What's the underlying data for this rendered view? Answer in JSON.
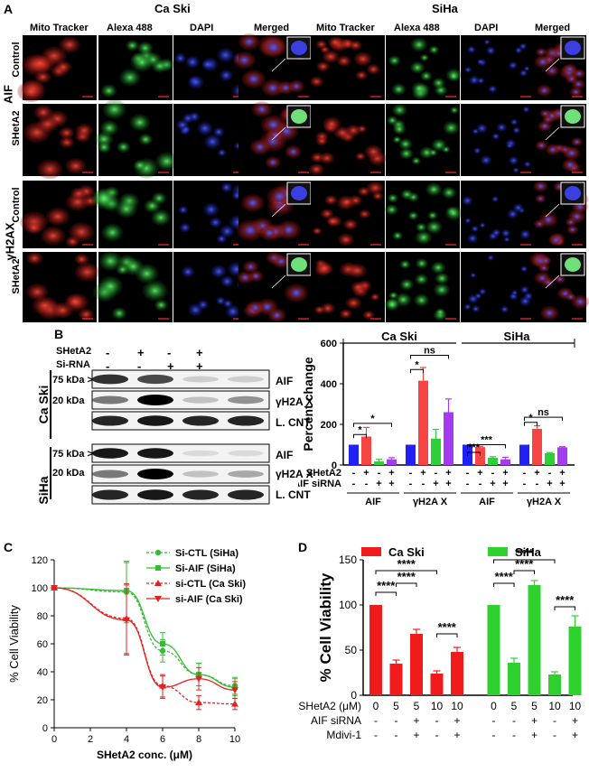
{
  "panelA": {
    "letter": "A",
    "groups": [
      "Ca Ski",
      "SiHa"
    ],
    "channels": [
      "Mito Tracker",
      "Alexa 488",
      "DAPI",
      "Merged"
    ],
    "markers": [
      "AIF",
      "γH2AX"
    ],
    "conditions": [
      "Control",
      "SHetA2"
    ],
    "colors": {
      "mito": "#d42a2a",
      "alexa": "#2fbf3a",
      "dapi": "#2a35d8"
    }
  },
  "panelB": {
    "letter": "B",
    "treat_labels": [
      "SHetA2",
      "Si-RNA"
    ],
    "treat_rows": [
      [
        "-",
        "+",
        "-",
        "+"
      ],
      [
        "-",
        "-",
        "+",
        "+"
      ]
    ],
    "cell_lines": [
      "Ca Ski",
      "SiHa"
    ],
    "kda": [
      "75 kDa >",
      "20 kDa",
      "75 kDa >",
      "20 kDa"
    ],
    "band_labels": [
      "AIF",
      "γH2A X",
      "L. CNT",
      "AIF",
      "γH2A X",
      "L. CNT"
    ]
  },
  "panelBchart": {
    "chart_data": {
      "type": "bar",
      "ylabel": "Percent change",
      "ylim": [
        0,
        600
      ],
      "yticks": [
        "0",
        "200",
        "400",
        "600"
      ],
      "groups_top": [
        "Ca Ski",
        "SiHa"
      ],
      "groups_bottom": [
        "AIF",
        "γH2A X",
        "AIF",
        "γH2A X"
      ],
      "row_labels": [
        "SHetA2",
        "AIF siRNA"
      ],
      "row_signs": [
        [
          "-",
          "+",
          "-",
          "+"
        ],
        [
          "-",
          "-",
          "+",
          "+"
        ]
      ],
      "colors": [
        "#2121f5",
        "#f54545",
        "#2fcf3a",
        "#a33cf0"
      ],
      "values": [
        [
          100,
          140,
          18,
          28
        ],
        [
          100,
          415,
          130,
          260
        ],
        [
          100,
          88,
          36,
          28
        ],
        [
          100,
          178,
          58,
          87
        ]
      ],
      "errors": [
        [
          0,
          45,
          10,
          8
        ],
        [
          0,
          65,
          45,
          65
        ],
        [
          0,
          4,
          5,
          10
        ],
        [
          0,
          15,
          3,
          3
        ]
      ],
      "annotations": [
        "*",
        "*",
        "*",
        "ns",
        "***",
        "***",
        "*",
        "ns"
      ]
    }
  },
  "panelC": {
    "letter": "C",
    "chart_data": {
      "type": "line",
      "xlabel": "SHetA2 conc. (μM)",
      "ylabel": "% Cell Viability",
      "xlim": [
        0,
        10
      ],
      "ylim": [
        0,
        120
      ],
      "xticks": [
        "0",
        "2",
        "4",
        "6",
        "8",
        "10"
      ],
      "yticks": [
        "0",
        "20",
        "40",
        "60",
        "80",
        "100",
        "120"
      ],
      "x": [
        0,
        4,
        6,
        8,
        10
      ],
      "series": [
        {
          "name": "Si-CTL (SiHa)",
          "color": "#2fbf2f",
          "dash": true,
          "marker": "circle",
          "values": [
            100,
            97,
            55,
            38,
            30
          ],
          "err": [
            0,
            22,
            8,
            8,
            6
          ]
        },
        {
          "name": "Si-AIF (SiHa)",
          "color": "#2fbf2f",
          "dash": false,
          "marker": "square",
          "values": [
            100,
            98,
            60,
            38,
            29
          ],
          "err": [
            0,
            20,
            8,
            8,
            6
          ]
        },
        {
          "name": "si-CTL (Ca Ski)",
          "color": "#e52222",
          "dash": true,
          "marker": "triangle-up",
          "values": [
            100,
            78,
            30,
            18,
            17
          ],
          "err": [
            0,
            25,
            8,
            5,
            4
          ]
        },
        {
          "name": "si-AIF (Ca Ski)",
          "color": "#e52222",
          "dash": false,
          "marker": "triangle-down",
          "values": [
            100,
            77,
            29,
            35,
            27
          ],
          "err": [
            0,
            25,
            8,
            8,
            6
          ]
        }
      ]
    }
  },
  "panelD": {
    "letter": "D",
    "chart_data": {
      "type": "bar",
      "ylabel": "% Cell Viability",
      "ylim": [
        0,
        150
      ],
      "yticks": [
        "0",
        "50",
        "100",
        "150"
      ],
      "legend": [
        {
          "name": "Ca Ski",
          "color": "#f21b1b"
        },
        {
          "name": "SiHa",
          "color": "#2fd12f"
        }
      ],
      "row_labels": [
        "SHetA2 (μM)",
        "AIF siRNA",
        "Mdivi-1"
      ],
      "columns": [
        {
          "shet": "0",
          "si": "-",
          "md": "-"
        },
        {
          "shet": "5",
          "si": "-",
          "md": "-"
        },
        {
          "shet": "5",
          "si": "+",
          "md": "+"
        },
        {
          "shet": "10",
          "si": "-",
          "md": "-"
        },
        {
          "shet": "10",
          "si": "+",
          "md": "+"
        },
        {
          "shet": "0",
          "si": "-",
          "md": "-"
        },
        {
          "shet": "5",
          "si": "-",
          "md": "-"
        },
        {
          "shet": "5",
          "si": "+",
          "md": "+"
        },
        {
          "shet": "10",
          "si": "-",
          "md": "-"
        },
        {
          "shet": "10",
          "si": "+",
          "md": "+"
        }
      ],
      "values": [
        100,
        35,
        68,
        24,
        48,
        100,
        36,
        122,
        23,
        76
      ],
      "errors": [
        0,
        4,
        5,
        3,
        5,
        0,
        5,
        5,
        3,
        12
      ],
      "sig_label": "****"
    }
  }
}
